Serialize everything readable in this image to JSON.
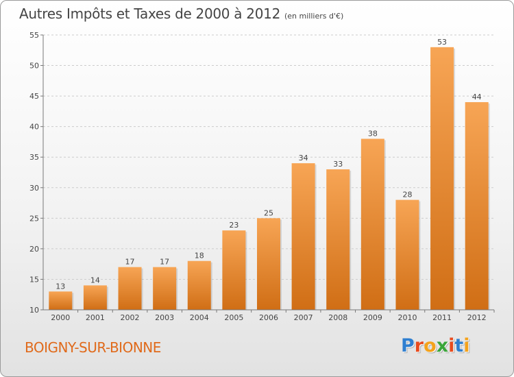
{
  "title": "Autres Impôts et Taxes de 2000 à 2012",
  "unit_note": "(en milliers d'€)",
  "commune": "BOIGNY-SUR-BIONNE",
  "logo": {
    "text": "Proxiti",
    "letters": [
      {
        "ch": "P",
        "color": "#2f7fd0"
      },
      {
        "ch": "r",
        "color": "#e84b1e"
      },
      {
        "ch": "o",
        "color": "#f4a21b"
      },
      {
        "ch": "x",
        "color": "#3aa53a"
      },
      {
        "ch": "i",
        "color": "#e84b1e"
      },
      {
        "ch": "t",
        "color": "#2f7fd0"
      },
      {
        "ch": "i",
        "color": "#f4a21b"
      }
    ]
  },
  "colors": {
    "bar_top": "#f7a555",
    "bar_bottom": "#d06e15",
    "text": "#444444",
    "grid": "#cccccc"
  },
  "chart_data": {
    "type": "bar",
    "title": "Autres Impôts et Taxes de 2000 à 2012",
    "subtitle": "(en milliers d'€)",
    "xlabel": "",
    "ylabel": "",
    "categories": [
      "2000",
      "2001",
      "2002",
      "2003",
      "2004",
      "2005",
      "2006",
      "2007",
      "2008",
      "2009",
      "2010",
      "2011",
      "2012"
    ],
    "values": [
      13,
      14,
      17,
      17,
      18,
      23,
      25,
      34,
      33,
      38,
      28,
      53,
      44
    ],
    "ylim": [
      10,
      55
    ],
    "yticks": [
      10,
      15,
      20,
      25,
      30,
      35,
      40,
      45,
      50,
      55
    ],
    "grid": true,
    "legend": "none"
  }
}
